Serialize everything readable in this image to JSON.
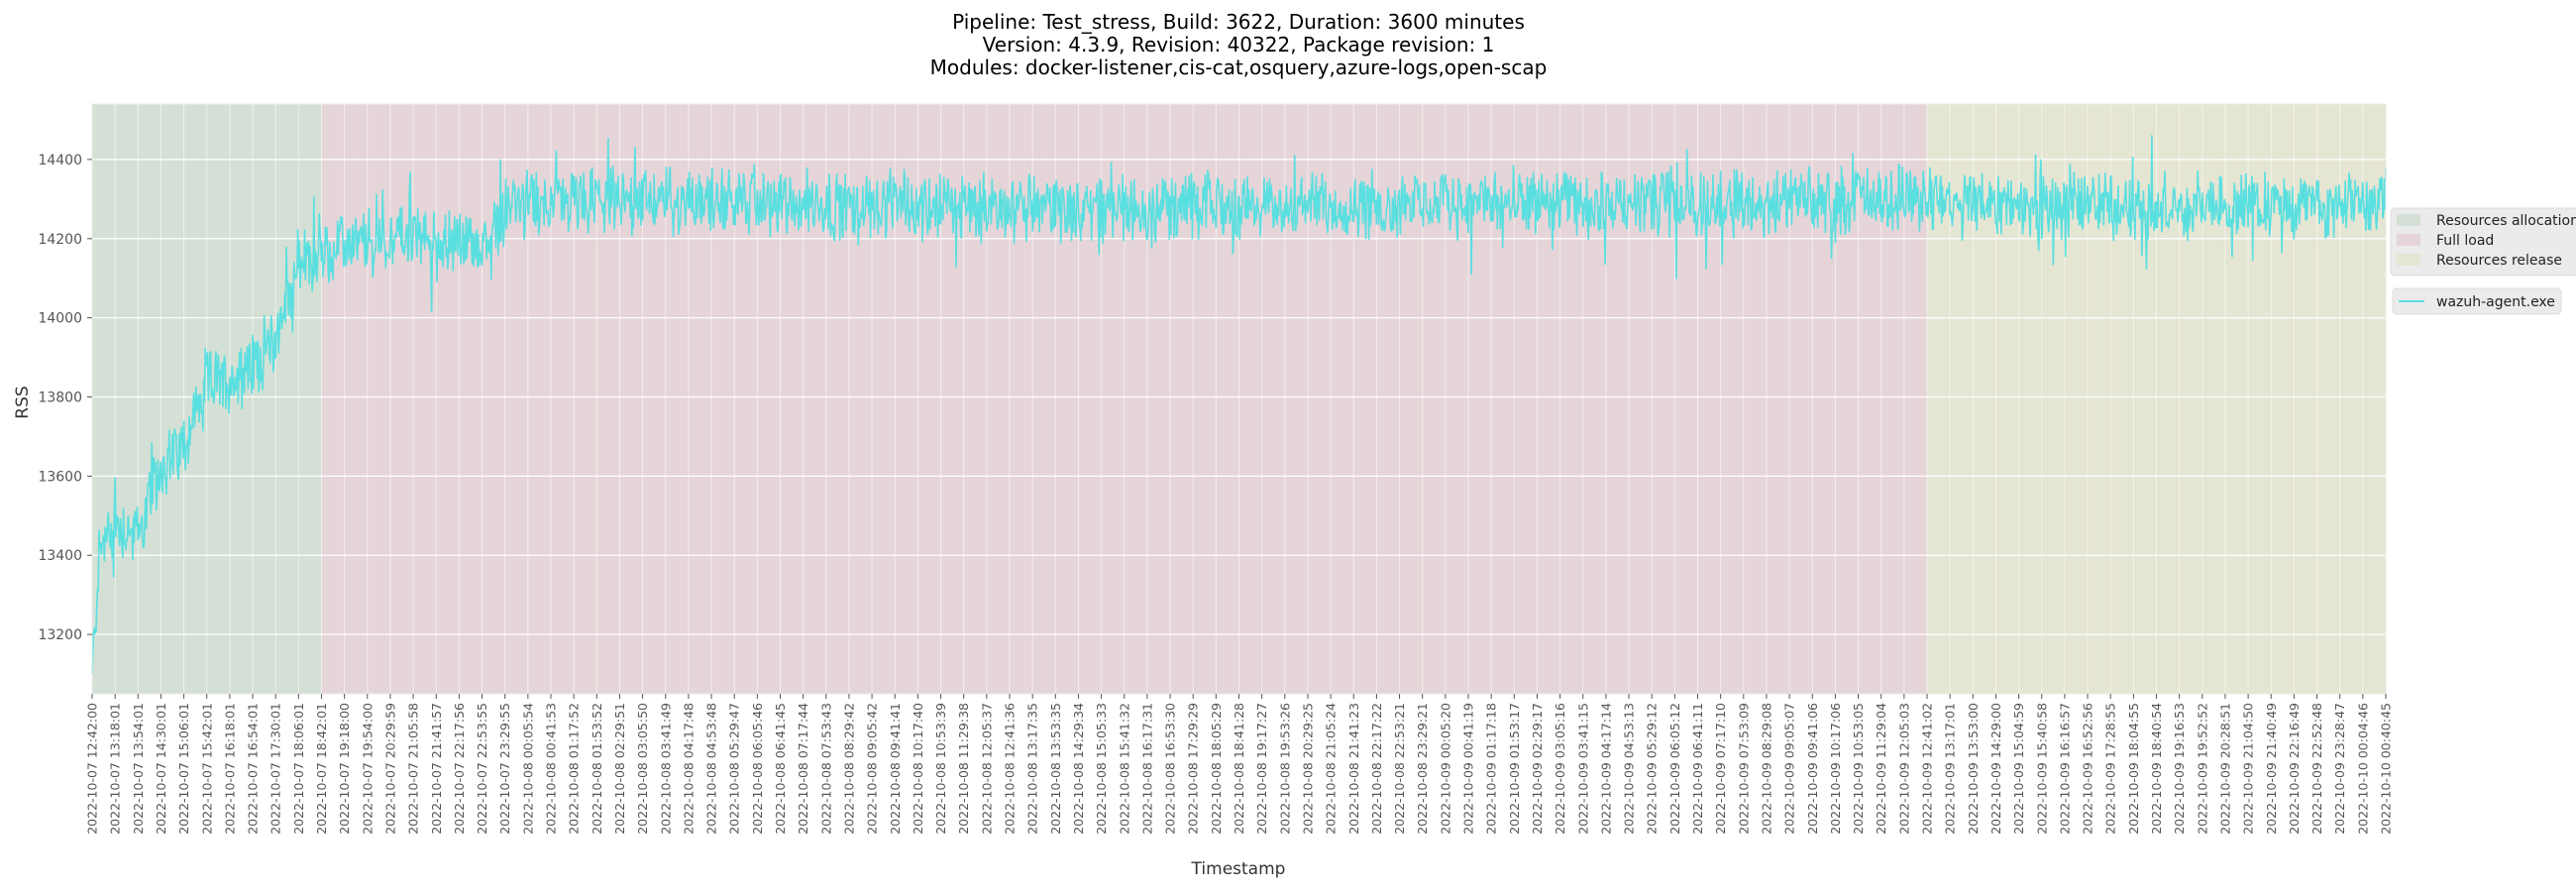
{
  "chart_data": {
    "type": "line",
    "title_lines": [
      "Pipeline: Test_stress, Build: 3622, Duration: 3600 minutes",
      "Version: 4.3.9, Revision: 40322, Package revision: 1",
      "Modules: docker-listener,cis-cat,osquery,azure-logs,open-scap"
    ],
    "xlabel": "Timestamp",
    "ylabel": "RSS",
    "ylim": [
      13050,
      14540
    ],
    "yticks": [
      13200,
      13400,
      13600,
      13800,
      14000,
      14200,
      14400
    ],
    "grid": true,
    "legend_position": "right",
    "phases": [
      {
        "name": "Resources allocation",
        "start_tick": 0,
        "end_tick": 10,
        "color": "#d4e0d5"
      },
      {
        "name": "Full load",
        "start_tick": 10,
        "end_tick": 80,
        "color": "#e5d5d8"
      },
      {
        "name": "Resources release",
        "start_tick": 80,
        "end_tick": 100,
        "color": "#e5e5d3"
      }
    ],
    "series": [
      {
        "name": "wazuh-agent.exe",
        "color": "#5adfe0"
      }
    ],
    "series_trend": {
      "note_ticks_are_tick_index": true,
      "points": [
        [
          0,
          13090
        ],
        [
          0.3,
          13400
        ],
        [
          1,
          13480
        ],
        [
          2,
          13450
        ],
        [
          3,
          13620
        ],
        [
          4,
          13680
        ],
        [
          5,
          13840
        ],
        [
          6,
          13840
        ],
        [
          7,
          13880
        ],
        [
          8,
          13950
        ],
        [
          9,
          14140
        ],
        [
          10,
          14150
        ],
        [
          11,
          14180
        ],
        [
          12,
          14190
        ],
        [
          13,
          14200
        ],
        [
          14,
          14210
        ],
        [
          15,
          14180
        ],
        [
          16,
          14200
        ],
        [
          17,
          14170
        ],
        [
          18,
          14280
        ],
        [
          20,
          14290
        ],
        [
          25,
          14300
        ],
        [
          30,
          14290
        ],
        [
          40,
          14280
        ],
        [
          50,
          14280
        ],
        [
          60,
          14290
        ],
        [
          70,
          14290
        ],
        [
          80,
          14300
        ],
        [
          90,
          14280
        ],
        [
          100,
          14290
        ]
      ],
      "noise_amplitude": 70
    },
    "x_tick_labels": [
      "2022-10-07 12:42:00",
      "2022-10-07 13:18:01",
      "2022-10-07 13:54:01",
      "2022-10-07 14:30:01",
      "2022-10-07 15:06:01",
      "2022-10-07 15:42:01",
      "2022-10-07 16:18:01",
      "2022-10-07 16:54:01",
      "2022-10-07 17:30:01",
      "2022-10-07 18:06:01",
      "2022-10-07 18:42:01",
      "2022-10-07 19:18:00",
      "2022-10-07 19:54:00",
      "2022-10-07 20:29:59",
      "2022-10-07 21:05:58",
      "2022-10-07 21:41:57",
      "2022-10-07 22:17:56",
      "2022-10-07 22:53:55",
      "2022-10-07 23:29:55",
      "2022-10-08 00:05:54",
      "2022-10-08 00:41:53",
      "2022-10-08 01:17:52",
      "2022-10-08 01:53:52",
      "2022-10-08 02:29:51",
      "2022-10-08 03:05:50",
      "2022-10-08 03:41:49",
      "2022-10-08 04:17:48",
      "2022-10-08 04:53:48",
      "2022-10-08 05:29:47",
      "2022-10-08 06:05:46",
      "2022-10-08 06:41:45",
      "2022-10-08 07:17:44",
      "2022-10-08 07:53:43",
      "2022-10-08 08:29:42",
      "2022-10-08 09:05:42",
      "2022-10-08 09:41:41",
      "2022-10-08 10:17:40",
      "2022-10-08 10:53:39",
      "2022-10-08 11:29:38",
      "2022-10-08 12:05:37",
      "2022-10-08 12:41:36",
      "2022-10-08 13:17:35",
      "2022-10-08 13:53:35",
      "2022-10-08 14:29:34",
      "2022-10-08 15:05:33",
      "2022-10-08 15:41:32",
      "2022-10-08 16:17:31",
      "2022-10-08 16:53:30",
      "2022-10-08 17:29:29",
      "2022-10-08 18:05:29",
      "2022-10-08 18:41:28",
      "2022-10-08 19:17:27",
      "2022-10-08 19:53:26",
      "2022-10-08 20:29:25",
      "2022-10-08 21:05:24",
      "2022-10-08 21:41:23",
      "2022-10-08 22:17:22",
      "2022-10-08 22:53:21",
      "2022-10-08 23:29:21",
      "2022-10-09 00:05:20",
      "2022-10-09 00:41:19",
      "2022-10-09 01:17:18",
      "2022-10-09 01:53:17",
      "2022-10-09 02:29:17",
      "2022-10-09 03:05:16",
      "2022-10-09 03:41:15",
      "2022-10-09 04:17:14",
      "2022-10-09 04:53:13",
      "2022-10-09 05:29:12",
      "2022-10-09 06:05:12",
      "2022-10-09 06:41:11",
      "2022-10-09 07:17:10",
      "2022-10-09 07:53:09",
      "2022-10-09 08:29:08",
      "2022-10-09 09:05:07",
      "2022-10-09 09:41:06",
      "2022-10-09 10:17:06",
      "2022-10-09 10:53:05",
      "2022-10-09 11:29:04",
      "2022-10-09 12:05:03",
      "2022-10-09 12:41:02",
      "2022-10-09 13:17:01",
      "2022-10-09 13:53:00",
      "2022-10-09 14:29:00",
      "2022-10-09 15:04:59",
      "2022-10-09 15:40:58",
      "2022-10-09 16:16:57",
      "2022-10-09 16:52:56",
      "2022-10-09 17:28:55",
      "2022-10-09 18:04:55",
      "2022-10-09 18:40:54",
      "2022-10-09 19:16:53",
      "2022-10-09 19:52:52",
      "2022-10-09 20:28:51",
      "2022-10-09 21:04:50",
      "2022-10-09 21:40:49",
      "2022-10-09 22:16:49",
      "2022-10-09 22:52:48",
      "2022-10-09 23:28:47",
      "2022-10-10 00:04:46",
      "2022-10-10 00:40:45"
    ],
    "colors": {
      "grid": "#ffffff",
      "plot_border": "#e8e8e8",
      "text": "#333333",
      "tick_text": "#555555"
    }
  }
}
